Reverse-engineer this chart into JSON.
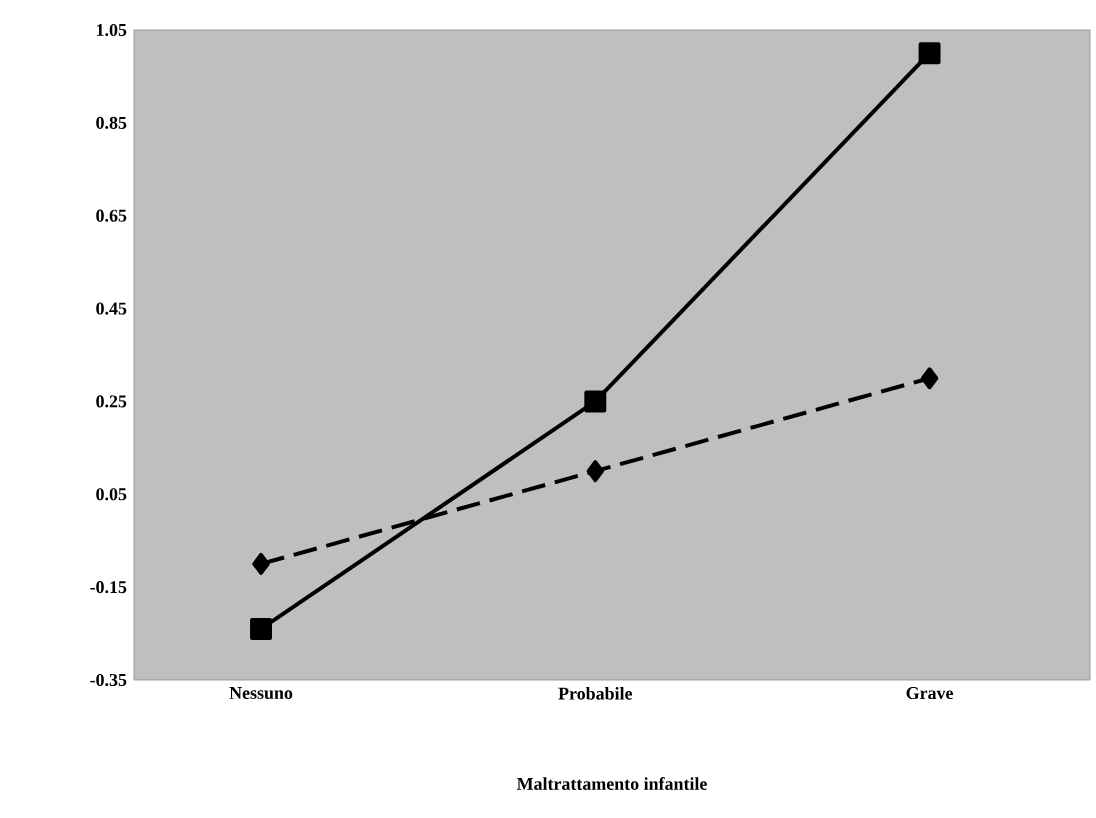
{
  "chart_data": {
    "type": "line",
    "xlabel": "Maltrattamento infantile",
    "categories": [
      "Nessuno",
      "Probabile",
      "Grave"
    ],
    "series": [
      {
        "color": "#000000",
        "marker": "square",
        "line_style": "solid",
        "values": [
          -0.24,
          0.25,
          1.0
        ]
      },
      {
        "color": "#000000",
        "marker": "diamond",
        "line_style": "dashed",
        "values": [
          -0.1,
          0.1,
          0.3
        ]
      }
    ],
    "ylim": [
      -0.35,
      1.05
    ],
    "yticks": [
      {
        "value": -0.35,
        "label": "-0.35"
      },
      {
        "value": -0.15,
        "label": "-0.15"
      },
      {
        "value": 0.05,
        "label": "0.05"
      },
      {
        "value": 0.25,
        "label": "0.25"
      },
      {
        "value": 0.45,
        "label": "0.45"
      },
      {
        "value": 0.65,
        "label": "0.65"
      },
      {
        "value": 0.85,
        "label": "0.85"
      },
      {
        "value": 1.05,
        "label": "1.05"
      }
    ],
    "grid": false
  }
}
